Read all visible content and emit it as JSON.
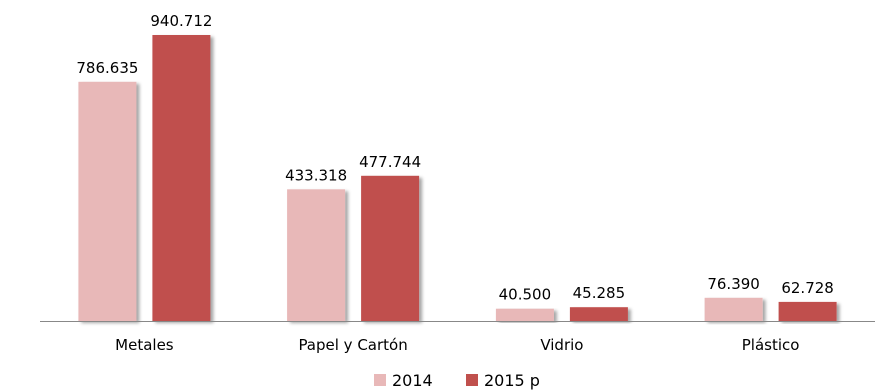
{
  "chart_data": {
    "type": "bar",
    "categories": [
      "Metales",
      "Papel y Cartón",
      "Vidrio",
      "Plástico"
    ],
    "series": [
      {
        "name": "2014",
        "values": [
          786.635,
          433.318,
          40.5,
          76.39
        ],
        "labels": [
          "786.635",
          "433.318",
          "40.500",
          "76.390"
        ],
        "color": "#e8b8b8"
      },
      {
        "name": "2015 p",
        "values": [
          940.712,
          477.744,
          45.285,
          62.728
        ],
        "labels": [
          "940.712",
          "477.744",
          "45.285",
          "62.728"
        ],
        "color": "#c0504d"
      }
    ],
    "legend_position": "bottom",
    "grid": false
  }
}
